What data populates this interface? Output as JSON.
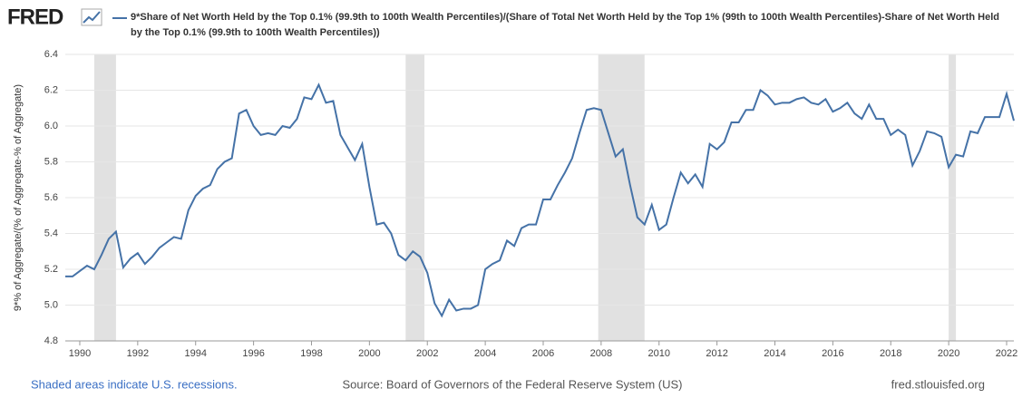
{
  "logo": "FRED",
  "chart_data": {
    "type": "line",
    "title": "9*Share of Net Worth Held by the Top 0.1% (99.9th to 100th Wealth Percentiles)/(Share of Total Net Worth Held by the Top 1% (99th to 100th Wealth Percentiles)-Share of Net Worth Held by the Top 0.1% (99.9th to 100th Wealth Percentiles))",
    "ylabel": "9*% of Aggregate/(% of Aggregate-% of Aggregate)",
    "x": [
      1989.5,
      1989.75,
      1990,
      1990.25,
      1990.5,
      1990.75,
      1991,
      1991.25,
      1991.5,
      1991.75,
      1992,
      1992.25,
      1992.5,
      1992.75,
      1993,
      1993.25,
      1993.5,
      1993.75,
      1994,
      1994.25,
      1994.5,
      1994.75,
      1995,
      1995.25,
      1995.5,
      1995.75,
      1996,
      1996.25,
      1996.5,
      1996.75,
      1997,
      1997.25,
      1997.5,
      1997.75,
      1998,
      1998.25,
      1998.5,
      1998.75,
      1999,
      1999.25,
      1999.5,
      1999.75,
      2000,
      2000.25,
      2000.5,
      2000.75,
      2001,
      2001.25,
      2001.5,
      2001.75,
      2002,
      2002.25,
      2002.5,
      2002.75,
      2003,
      2003.25,
      2003.5,
      2003.75,
      2004,
      2004.25,
      2004.5,
      2004.75,
      2005,
      2005.25,
      2005.5,
      2005.75,
      2006,
      2006.25,
      2006.5,
      2006.75,
      2007,
      2007.25,
      2007.5,
      2007.75,
      2008,
      2008.25,
      2008.5,
      2008.75,
      2009,
      2009.25,
      2009.5,
      2009.75,
      2010,
      2010.25,
      2010.5,
      2010.75,
      2011,
      2011.25,
      2011.5,
      2011.75,
      2012,
      2012.25,
      2012.5,
      2012.75,
      2013,
      2013.25,
      2013.5,
      2013.75,
      2014,
      2014.25,
      2014.5,
      2014.75,
      2015,
      2015.25,
      2015.5,
      2015.75,
      2016,
      2016.25,
      2016.5,
      2016.75,
      2017,
      2017.25,
      2017.5,
      2017.75,
      2018,
      2018.25,
      2018.5,
      2018.75,
      2019,
      2019.25,
      2019.5,
      2019.75,
      2020,
      2020.25,
      2020.5,
      2020.75,
      2021,
      2021.25,
      2021.5,
      2021.75,
      2022,
      2022.25
    ],
    "series": [
      {
        "name": "9*Share of Net Worth Held by the Top 0.1% (99.9th to 100th Wealth Percentiles)/(Share of Total Net Worth Held by the Top 1% (99th to 100th Wealth Percentiles)-Share of Net Worth Held by the Top 0.1% (99.9th to 100th Wealth Percentiles))",
        "color": "#4572a7",
        "values": [
          5.16,
          5.16,
          5.19,
          5.22,
          5.2,
          5.28,
          5.37,
          5.41,
          5.21,
          5.26,
          5.29,
          5.23,
          5.27,
          5.32,
          5.35,
          5.38,
          5.37,
          5.53,
          5.61,
          5.65,
          5.67,
          5.76,
          5.8,
          5.82,
          6.07,
          6.09,
          6.0,
          5.95,
          5.96,
          5.95,
          6.0,
          5.99,
          6.04,
          6.16,
          6.15,
          6.23,
          6.13,
          6.14,
          5.95,
          5.88,
          5.81,
          5.9,
          5.66,
          5.45,
          5.46,
          5.4,
          5.28,
          5.25,
          5.3,
          5.27,
          5.18,
          5.01,
          4.94,
          5.03,
          4.97,
          4.98,
          4.98,
          5.0,
          5.2,
          5.23,
          5.25,
          5.36,
          5.33,
          5.43,
          5.45,
          5.45,
          5.59,
          5.59,
          5.67,
          5.74,
          5.82,
          5.96,
          6.09,
          6.1,
          6.09,
          5.96,
          5.83,
          5.87,
          5.67,
          5.49,
          5.45,
          5.56,
          5.42,
          5.45,
          5.6,
          5.74,
          5.68,
          5.73,
          5.66,
          5.9,
          5.87,
          5.91,
          6.02,
          6.02,
          6.09,
          6.09,
          6.2,
          6.17,
          6.12,
          6.13,
          6.13,
          6.15,
          6.16,
          6.13,
          6.12,
          6.15,
          6.08,
          6.1,
          6.13,
          6.07,
          6.04,
          6.12,
          6.04,
          6.04,
          5.95,
          5.98,
          5.95,
          5.78,
          5.86,
          5.97,
          5.96,
          5.94,
          5.77,
          5.84,
          5.83,
          5.97,
          5.96,
          6.05,
          6.05,
          6.05,
          6.18,
          6.03
        ]
      }
    ],
    "recessions": [
      [
        1990.5,
        1991.25
      ],
      [
        2001.25,
        2001.9
      ],
      [
        2007.9,
        2009.5
      ],
      [
        2020.0,
        2020.25
      ]
    ],
    "xlim": [
      1989.5,
      2022.25
    ],
    "xticks": [
      1990,
      1992,
      1994,
      1996,
      1998,
      2000,
      2002,
      2004,
      2006,
      2008,
      2010,
      2012,
      2014,
      2016,
      2018,
      2020,
      2022
    ],
    "ylim": [
      4.8,
      6.4
    ],
    "yticks": [
      4.8,
      {
        "value": 5,
        "label": "5.0"
      },
      5.2,
      5.4,
      5.6,
      5.8,
      {
        "value": 6,
        "label": "6.0"
      },
      6.2,
      6.4
    ],
    "grid": true,
    "recession_note": "Shaded areas indicate U.S. recessions.",
    "source": "Source: Board of Governors of the Federal Reserve System (US)",
    "site": "fred.stlouisfed.org"
  }
}
